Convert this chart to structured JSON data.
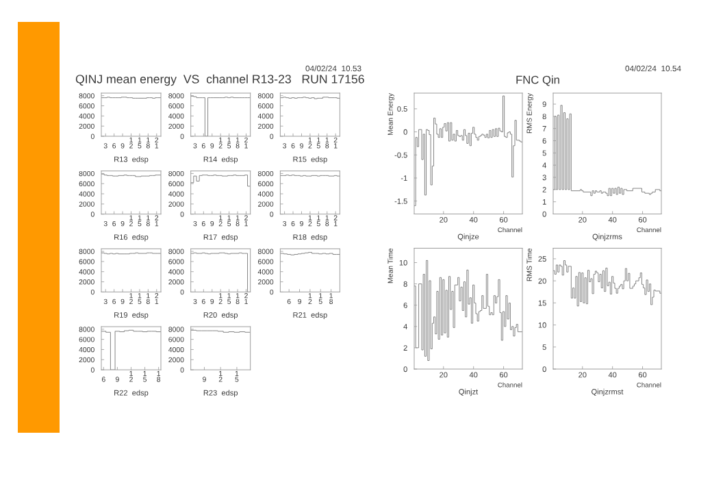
{
  "chart_data": [
    {
      "type": "histogram",
      "xlabel": "R13  edsp",
      "annotations": [
        "QINJ mean energy  VS  channel R13-23   RUN 17156",
        "04/02/24  10.53"
      ],
      "color": "#808080",
      "bins": [
        1.5,
        2.5,
        3.5,
        4.5,
        5.5,
        6.5,
        7.5,
        8.5,
        9.5,
        10.5,
        11.5,
        12.5,
        13.5,
        14.5,
        15.5,
        16.5,
        17.5,
        18.5,
        19.5,
        20.5,
        21.5,
        22.5
      ],
      "values": [
        7600,
        7600,
        7700,
        7600,
        7600,
        7600,
        7600,
        7700,
        7700,
        7600,
        7600,
        7500,
        7500,
        7500,
        7500,
        7500,
        7600,
        7600,
        7500,
        7600,
        7600
      ],
      "xlim": [
        1.5,
        22.5
      ],
      "ylim": [
        0,
        8500
      ],
      "xticks": [
        3,
        6,
        9,
        12,
        15,
        18,
        21
      ],
      "yticks": [
        0,
        2000,
        4000,
        6000,
        8000
      ]
    },
    {
      "type": "histogram",
      "xlabel": "R14  edsp",
      "color": "#808080",
      "bins": [
        1.5,
        2.5,
        3.5,
        4.5,
        5.5,
        6.5,
        7.5,
        8.5,
        9.5,
        10.5,
        11.5,
        12.5,
        13.5,
        14.5,
        15.5,
        16.5,
        17.5,
        18.5,
        19.5,
        20.5,
        21.5,
        22.5
      ],
      "values": [
        7900,
        7800,
        7600,
        7600,
        7600,
        0,
        7600,
        7600,
        7600,
        7600,
        7600,
        7600,
        7700,
        7600,
        7700,
        7600,
        7600,
        7600,
        7600,
        7600,
        7600
      ],
      "xlim": [
        1.5,
        22.5
      ],
      "ylim": [
        0,
        8500
      ],
      "xticks": [
        3,
        6,
        9,
        12,
        15,
        18,
        21
      ],
      "yticks": [
        0,
        2000,
        4000,
        6000,
        8000
      ]
    },
    {
      "type": "histogram",
      "xlabel": "R15  edsp",
      "color": "#808080",
      "bins": [
        1.5,
        2.5,
        3.5,
        4.5,
        5.5,
        6.5,
        7.5,
        8.5,
        9.5,
        10.5,
        11.5,
        12.5,
        13.5,
        14.5,
        15.5,
        16.5,
        17.5,
        18.5,
        19.5,
        20.5,
        21.5,
        22.5
      ],
      "values": [
        7600,
        7700,
        7600,
        7500,
        7600,
        7500,
        7600,
        7600,
        7700,
        7600,
        7500,
        7600,
        7400,
        7500,
        7500,
        7700,
        7700,
        7600,
        7600,
        7600,
        7500
      ],
      "xlim": [
        1.5,
        22.5
      ],
      "ylim": [
        0,
        8500
      ],
      "xticks": [
        3,
        6,
        9,
        12,
        15,
        18,
        21
      ],
      "yticks": [
        0,
        2000,
        4000,
        6000,
        8000
      ]
    },
    {
      "type": "histogram",
      "xlabel": "R16  edsp",
      "color": "#808080",
      "bins": [
        1.5,
        2.5,
        3.5,
        4.5,
        5.5,
        6.5,
        7.5,
        8.5,
        9.5,
        10.5,
        11.5,
        12.5,
        13.5,
        14.5,
        15.5,
        16.5,
        17.5,
        18.5,
        19.5,
        20.5,
        21.5,
        22.5
      ],
      "values": [
        7900,
        7700,
        7600,
        7600,
        7500,
        7500,
        7600,
        7600,
        7700,
        7600,
        7600,
        7600,
        7400,
        7400,
        7500,
        7500,
        7500,
        7600,
        7600,
        7700,
        7700
      ],
      "xlim": [
        1.5,
        22.5
      ],
      "ylim": [
        0,
        8500
      ],
      "xticks": [
        3,
        6,
        9,
        12,
        15,
        18,
        21
      ],
      "yticks": [
        0,
        2000,
        4000,
        6000,
        8000
      ]
    },
    {
      "type": "histogram",
      "xlabel": "R17  edsp",
      "color": "#808080",
      "bins": [
        1.5,
        2.5,
        3.5,
        4.5,
        5.5,
        6.5,
        7.5,
        8.5,
        9.5,
        10.5,
        11.5,
        12.5,
        13.5,
        14.5,
        15.5,
        16.5,
        17.5,
        18.5,
        19.5,
        20.5,
        21.5,
        22.5
      ],
      "values": [
        6200,
        7500,
        6500,
        7600,
        7700,
        7700,
        7600,
        7600,
        7700,
        7600,
        7600,
        7500,
        7500,
        7600,
        7600,
        7700,
        7600,
        7600,
        7600,
        7700,
        5500
      ],
      "xlim": [
        1.5,
        22.5
      ],
      "ylim": [
        0,
        8500
      ],
      "xticks": [
        3,
        6,
        9,
        12,
        15,
        18,
        21
      ],
      "yticks": [
        0,
        2000,
        4000,
        6000,
        8000
      ]
    },
    {
      "type": "histogram",
      "xlabel": "R18  edsp",
      "color": "#808080",
      "bins": [
        1.5,
        2.5,
        3.5,
        4.5,
        5.5,
        6.5,
        7.5,
        8.5,
        9.5,
        10.5,
        11.5,
        12.5,
        13.5,
        14.5,
        15.5,
        16.5,
        17.5,
        18.5,
        19.5,
        20.5,
        21.5,
        22.5
      ],
      "values": [
        7600,
        7600,
        7700,
        7600,
        7700,
        7600,
        7600,
        7500,
        7600,
        7500,
        7500,
        7600,
        7600,
        7500,
        7600,
        7600,
        7600,
        7500,
        7500,
        7600,
        7500
      ],
      "xlim": [
        1.5,
        22.5
      ],
      "ylim": [
        0,
        8500
      ],
      "xticks": [
        3,
        6,
        9,
        12,
        15,
        18,
        21
      ],
      "yticks": [
        0,
        2000,
        4000,
        6000,
        8000
      ]
    },
    {
      "type": "histogram",
      "xlabel": "R19  edsp",
      "color": "#808080",
      "bins": [
        1.5,
        2.5,
        3.5,
        4.5,
        5.5,
        6.5,
        7.5,
        8.5,
        9.5,
        10.5,
        11.5,
        12.5,
        13.5,
        14.5,
        15.5,
        16.5,
        17.5,
        18.5,
        19.5,
        20.5,
        21.5,
        22.5
      ],
      "values": [
        7700,
        7600,
        7500,
        7600,
        7500,
        7600,
        7500,
        7500,
        7500,
        7500,
        7600,
        7600,
        7700,
        7600,
        7600,
        7600,
        7700,
        7700,
        7600,
        7600,
        7600
      ],
      "xlim": [
        1.5,
        22.5
      ],
      "ylim": [
        0,
        8500
      ],
      "xticks": [
        3,
        6,
        9,
        12,
        15,
        18,
        21
      ],
      "yticks": [
        0,
        2000,
        4000,
        6000,
        8000
      ]
    },
    {
      "type": "histogram",
      "xlabel": "R20  edsp",
      "color": "#808080",
      "bins": [
        1.5,
        2.5,
        3.5,
        4.5,
        5.5,
        6.5,
        7.5,
        8.5,
        9.5,
        10.5,
        11.5,
        12.5,
        13.5,
        14.5,
        15.5,
        16.5,
        17.5,
        18.5,
        19.5,
        20.5,
        21.5,
        22.5
      ],
      "values": [
        7600,
        7700,
        7600,
        7600,
        7700,
        7600,
        7500,
        7600,
        7600,
        7600,
        7700,
        7700,
        7600,
        7500,
        7600,
        7600,
        7600,
        7700,
        7600,
        7600,
        0
      ],
      "xlim": [
        1.5,
        22.5
      ],
      "ylim": [
        0,
        8500
      ],
      "xticks": [
        3,
        6,
        9,
        12,
        15,
        18,
        21
      ],
      "yticks": [
        0,
        2000,
        4000,
        6000,
        8000
      ]
    },
    {
      "type": "histogram",
      "xlabel": "R21  edsp",
      "color": "#808080",
      "bins": [
        3.5,
        4.5,
        5.5,
        6.5,
        7.5,
        8.5,
        9.5,
        10.5,
        11.5,
        12.5,
        13.5,
        14.5,
        15.5,
        16.5,
        17.5,
        18.5,
        19.5,
        20.5
      ],
      "values": [
        7600,
        7500,
        7400,
        7300,
        7400,
        7500,
        7600,
        7700,
        7800,
        7600,
        7600,
        7500,
        7600,
        7500,
        7600,
        7400,
        7400
      ],
      "xlim": [
        3.5,
        20.5
      ],
      "ylim": [
        0,
        8500
      ],
      "xticks": [
        6,
        9,
        12,
        15,
        18
      ],
      "yticks": [
        0,
        2000,
        4000,
        6000,
        8000
      ]
    },
    {
      "type": "histogram",
      "xlabel": "R22  edsp",
      "color": "#808080",
      "bins": [
        5.5,
        6.5,
        7.5,
        8.5,
        9.5,
        10.5,
        11.5,
        12.5,
        13.5,
        14.5,
        15.5,
        16.5,
        17.5,
        18.5
      ],
      "values": [
        7600,
        7400,
        0,
        7600,
        7500,
        7700,
        7800,
        7600,
        7600,
        7500,
        7600,
        7600,
        7500
      ],
      "xlim": [
        5.5,
        18.5
      ],
      "ylim": [
        0,
        8500
      ],
      "xticks": [
        6,
        9,
        12,
        15,
        18
      ],
      "yticks": [
        0,
        2000,
        4000,
        6000,
        8000
      ]
    },
    {
      "type": "histogram",
      "xlabel": "R23  edsp",
      "color": "#808080",
      "bins": [
        6.5,
        7.5,
        8.5,
        9.5,
        10.5,
        11.5,
        12.5,
        13.5,
        14.5,
        15.5,
        16.5,
        17.5
      ],
      "values": [
        7800,
        7700,
        7700,
        7700,
        7700,
        7600,
        7400,
        7500,
        7400,
        7500,
        7400
      ],
      "xlim": [
        6.5,
        17.5
      ],
      "ylim": [
        0,
        8500
      ],
      "xticks": [
        9,
        12,
        15
      ],
      "yticks": [
        0,
        2000,
        4000,
        6000,
        8000
      ]
    },
    {
      "type": "histogram",
      "title": "Qinjze",
      "xlabel": "Channel",
      "ylabel": "Mean Energy",
      "annotations": [
        "FNC Qin",
        "04/02/24  10.54"
      ],
      "color": "#808080",
      "bins": [
        0.5,
        1.5,
        2.5,
        3.5,
        4.5,
        5.5,
        6.5,
        7.5,
        8.5,
        9.5,
        10.5,
        11.5,
        12.5,
        13.5,
        14.5,
        15.5,
        16.5,
        17.5,
        18.5,
        19.5,
        20.5,
        21.5,
        22.5,
        23.5,
        24.5,
        25.5,
        26.5,
        27.5,
        28.5,
        29.5,
        30.5,
        31.5,
        32.5,
        33.5,
        34.5,
        35.5,
        36.5,
        37.5,
        38.5,
        39.5,
        40.5,
        41.5,
        42.5,
        43.5,
        44.5,
        45.5,
        46.5,
        47.5,
        48.5,
        49.5,
        50.5,
        51.5,
        52.5,
        53.5,
        54.5,
        55.5,
        56.5,
        57.5,
        58.5,
        59.5,
        60.5,
        61.5,
        62.5,
        63.5,
        64.5,
        65.5,
        66.5,
        67.5,
        68.5,
        69.5,
        70.5,
        71.5,
        72.5
      ],
      "values": [
        -1.6,
        -0.12,
        -0.32,
        0.05,
        0.05,
        -0.6,
        -0.05,
        -1.37,
        0.05,
        0.03,
        -0.06,
        -1.15,
        -0.74,
        0.3,
        0.17,
        -0.05,
        -0.12,
        0.07,
        -0.12,
        0.1,
        0.18,
        0.02,
        0.2,
        -0.2,
        0.2,
        -0.18,
        -0.05,
        -0.2,
        0.03,
        -0.08,
        -0.1,
        -0.08,
        -0.18,
        0.05,
        -0.08,
        -0.25,
        -0.03,
        -0.3,
        -0.03,
        0.1,
        -0.05,
        -0.12,
        -0.18,
        -0.1,
        -0.08,
        -0.05,
        -0.07,
        -0.12,
        -0.05,
        -0.13,
        0.03,
        -0.12,
        0.05,
        -0.1,
        0.07,
        -0.1,
        0.08,
        0.02,
        0,
        0.78,
        -0.1,
        -0.12,
        -0.02,
        0,
        -0.05,
        -0.98,
        -0.3,
        0.25,
        -0.18,
        -0.18,
        -0.2,
        -0.22
      ],
      "xlim": [
        0.5,
        72.5
      ],
      "ylim": [
        -1.78,
        0.84
      ],
      "xticks": [
        20,
        40,
        60
      ],
      "yticks": [
        -1.5,
        -1,
        -0.5,
        0,
        0.5
      ]
    },
    {
      "type": "histogram",
      "title": "Qinjzrms",
      "xlabel": "Channel",
      "ylabel": "RMS Energy",
      "color": "#808080",
      "bins": [
        0.5,
        1.5,
        2.5,
        3.5,
        4.5,
        5.5,
        6.5,
        7.5,
        8.5,
        9.5,
        10.5,
        11.5,
        12.5,
        13.5,
        14.5,
        15.5,
        16.5,
        17.5,
        18.5,
        19.5,
        20.5,
        21.5,
        22.5,
        23.5,
        24.5,
        25.5,
        26.5,
        27.5,
        28.5,
        29.5,
        30.5,
        31.5,
        32.5,
        33.5,
        34.5,
        35.5,
        36.5,
        37.5,
        38.5,
        39.5,
        40.5,
        41.5,
        42.5,
        43.5,
        44.5,
        45.5,
        46.5,
        47.5,
        48.5,
        49.5,
        50.5,
        51.5,
        52.5,
        53.5,
        54.5,
        55.5,
        56.5,
        57.5,
        58.5,
        59.5,
        60.5,
        61.5,
        62.5,
        63.5,
        64.5,
        65.5,
        66.5,
        67.5,
        68.5,
        69.5,
        70.5,
        71.5,
        72.5
      ],
      "values": [
        2.0,
        8.0,
        2.0,
        8.1,
        2.0,
        8.9,
        2.0,
        8.3,
        2.0,
        7.8,
        2.0,
        8.2,
        1.9,
        1.9,
        1.9,
        1.9,
        1.9,
        1.9,
        2.0,
        1.9,
        1.8,
        1.8,
        1.8,
        1.8,
        1.8,
        1.5,
        1.9,
        1.7,
        1.9,
        1.8,
        1.8,
        1.9,
        1.7,
        1.8,
        1.8,
        1.7,
        1.5,
        2.1,
        1.5,
        2.1,
        1.7,
        2.1,
        1.6,
        2.2,
        1.7,
        2.1,
        1.6,
        2.0,
        2.0,
        1.9,
        1.9,
        1.9,
        1.9,
        2.1,
        2.1,
        2.1,
        2.1,
        2.1,
        2.1,
        1.8,
        1.8,
        1.7,
        1.7,
        1.7,
        1.6,
        1.7,
        1.8,
        1.8,
        2.0,
        2.0,
        2.0,
        1.9
      ],
      "xlim": [
        0.5,
        72.5
      ],
      "ylim": [
        0,
        9.9
      ],
      "xticks": [
        20,
        40,
        60
      ],
      "yticks": [
        0,
        1,
        2,
        3,
        4,
        5,
        6,
        7,
        8,
        9
      ]
    },
    {
      "type": "histogram",
      "title": "Qinjzt",
      "xlabel": "Channel",
      "ylabel": "Mean Time",
      "color": "#808080",
      "bins": [
        0.5,
        1.5,
        2.5,
        3.5,
        4.5,
        5.5,
        6.5,
        7.5,
        8.5,
        9.5,
        10.5,
        11.5,
        12.5,
        13.5,
        14.5,
        15.5,
        16.5,
        17.5,
        18.5,
        19.5,
        20.5,
        21.5,
        22.5,
        23.5,
        24.5,
        25.5,
        26.5,
        27.5,
        28.5,
        29.5,
        30.5,
        31.5,
        32.5,
        33.5,
        34.5,
        35.5,
        36.5,
        37.5,
        38.5,
        39.5,
        40.5,
        41.5,
        42.5,
        43.5,
        44.5,
        45.5,
        46.5,
        47.5,
        48.5,
        49.5,
        50.5,
        51.5,
        52.5,
        53.5,
        54.5,
        55.5,
        56.5,
        57.5,
        58.5,
        59.5,
        60.5,
        61.5,
        62.5,
        63.5,
        64.5,
        65.5,
        66.5,
        67.5,
        68.5,
        69.5,
        70.5,
        71.5,
        72.5
      ],
      "values": [
        7.8,
        2.0,
        2.0,
        8.0,
        8.0,
        1.8,
        8.9,
        1.2,
        10.2,
        0.8,
        8.3,
        1.9,
        4.3,
        4.9,
        3.3,
        7.3,
        2.8,
        8.6,
        3.2,
        8.4,
        3.4,
        7.4,
        3.0,
        8.7,
        5.6,
        7.3,
        3.9,
        7.9,
        7.9,
        8.6,
        6.4,
        7.7,
        5.5,
        8.2,
        4.9,
        9.3,
        6.1,
        6.7,
        4.3,
        7.9,
        6.2,
        5.2,
        4.5,
        5.4,
        5.5,
        6.9,
        5.7,
        5.7,
        8.9,
        5.9,
        5.1,
        5.3,
        5.1,
        6.9,
        6.2,
        6.8,
        8.4,
        5.3,
        2.7,
        5.4,
        4.0,
        6.9,
        4.7,
        6.2,
        3.7,
        4.0,
        3.1,
        3.9,
        4.2,
        3.5,
        3.5,
        3.5
      ],
      "xlim": [
        0.5,
        72.5
      ],
      "ylim": [
        0,
        11.35
      ],
      "xticks": [
        20,
        40,
        60
      ],
      "yticks": [
        0,
        2,
        4,
        6,
        8,
        10
      ]
    },
    {
      "type": "histogram",
      "title": "Qinjzrmst",
      "xlabel": "Channel",
      "ylabel": "RMS Time",
      "color": "#808080",
      "bins": [
        0.5,
        1.5,
        2.5,
        3.5,
        4.5,
        5.5,
        6.5,
        7.5,
        8.5,
        9.5,
        10.5,
        11.5,
        12.5,
        13.5,
        14.5,
        15.5,
        16.5,
        17.5,
        18.5,
        19.5,
        20.5,
        21.5,
        22.5,
        23.5,
        24.5,
        25.5,
        26.5,
        27.5,
        28.5,
        29.5,
        30.5,
        31.5,
        32.5,
        33.5,
        34.5,
        35.5,
        36.5,
        37.5,
        38.5,
        39.5,
        40.5,
        41.5,
        42.5,
        43.5,
        44.5,
        45.5,
        46.5,
        47.5,
        48.5,
        49.5,
        50.5,
        51.5,
        52.5,
        53.5,
        54.5,
        55.5,
        56.5,
        57.5,
        58.5,
        59.5,
        60.5,
        61.5,
        62.5,
        63.5,
        64.5,
        65.5,
        66.5,
        67.5,
        68.5,
        69.5,
        70.5,
        71.5,
        72.5
      ],
      "values": [
        22.3,
        21.5,
        23.6,
        22.0,
        23.6,
        23.3,
        21.3,
        24.6,
        23.6,
        22.0,
        23.3,
        23.3,
        16.1,
        18.4,
        16.1,
        21.0,
        14.3,
        21.9,
        15.3,
        21.8,
        15.0,
        20.7,
        14.8,
        22.4,
        19.8,
        20.5,
        17.1,
        21.5,
        22.2,
        21.8,
        19.8,
        21.5,
        18.4,
        22.3,
        17.6,
        22.9,
        18.9,
        19.7,
        17.0,
        21.0,
        19.5,
        18.3,
        17.2,
        18.3,
        18.8,
        19.2,
        18.2,
        20.0,
        22.8,
        20.0,
        21.7,
        18.3,
        18.3,
        18.8,
        19.3,
        20.0,
        20.0,
        20.7,
        21.8,
        19.2,
        18.4,
        16.9,
        20.2,
        17.6,
        19.3,
        14.6,
        16.3,
        17.9,
        17.7,
        17.7,
        17.7,
        17.2
      ],
      "xlim": [
        0.5,
        72.5
      ],
      "ylim": [
        0,
        27.4
      ],
      "xticks": [
        20,
        40,
        60
      ],
      "yticks": [
        0,
        5,
        10,
        15,
        20,
        25
      ]
    }
  ]
}
